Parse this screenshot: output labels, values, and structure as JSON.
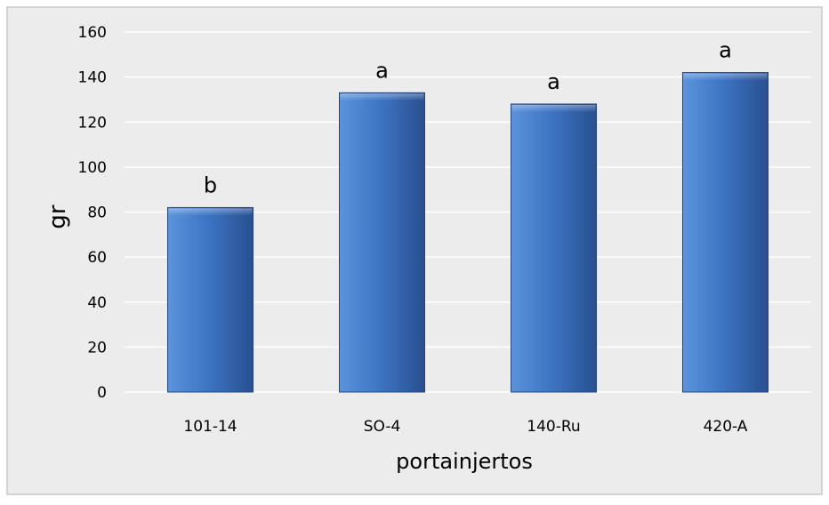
{
  "chart_data": {
    "type": "bar",
    "title": "",
    "xlabel": "portainjertos",
    "ylabel": "gr",
    "categories": [
      "101-14",
      "SO-4",
      "140-Ru",
      "420-A"
    ],
    "values": [
      82,
      133,
      128,
      142
    ],
    "significance_labels": [
      "b",
      "a",
      "a",
      "a"
    ],
    "ylim": [
      0,
      160
    ],
    "yticks": [
      "0",
      "20",
      "40",
      "60",
      "80",
      "100",
      "120",
      "140",
      "160"
    ],
    "grid": true,
    "legend": "none",
    "colors": {
      "background": "#ececec",
      "border": "#c8c8c8",
      "gridline": "#ffffff",
      "bar_light": "#5b93dc",
      "bar_mid": "#3f76c6",
      "bar_dark": "#284f90",
      "bar_edge": "#23467f",
      "text": "#000000"
    }
  }
}
